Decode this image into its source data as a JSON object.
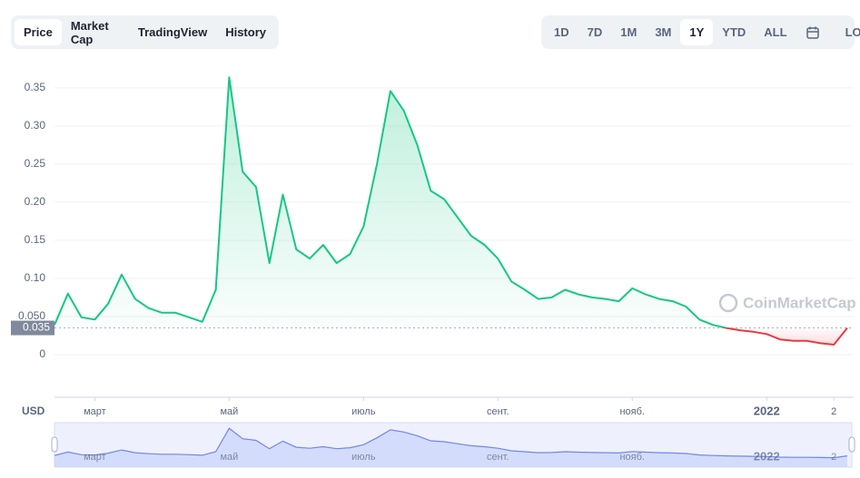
{
  "tabs": [
    "Price",
    "Market Cap",
    "TradingView",
    "History"
  ],
  "active_tab": 0,
  "ranges": [
    "1D",
    "7D",
    "1M",
    "3M",
    "1Y",
    "YTD",
    "ALL"
  ],
  "active_range": 4,
  "log_button": "LOG",
  "watermark": "CoinMarketCap",
  "currency": "USD",
  "chart_data": {
    "type": "line",
    "categories": [
      null,
      null,
      null,
      "март",
      null,
      null,
      null,
      null,
      null,
      null,
      null,
      null,
      null,
      "май",
      null,
      null,
      null,
      null,
      null,
      null,
      null,
      null,
      null,
      "июль",
      null,
      null,
      null,
      null,
      null,
      null,
      null,
      null,
      null,
      "сент.",
      null,
      null,
      null,
      null,
      null,
      null,
      null,
      null,
      null,
      "нояб.",
      null,
      null,
      null,
      null,
      null,
      null,
      null,
      null,
      null,
      "2022",
      null,
      null,
      null,
      null,
      "2",
      null
    ],
    "bold_categories": [
      "2022"
    ],
    "values": [
      0.039,
      0.08,
      0.049,
      0.046,
      0.067,
      0.105,
      0.073,
      0.061,
      0.055,
      0.055,
      0.049,
      0.043,
      0.085,
      0.364,
      0.24,
      0.22,
      0.12,
      0.21,
      0.138,
      0.126,
      0.144,
      0.12,
      0.132,
      0.168,
      0.25,
      0.346,
      0.32,
      0.275,
      0.215,
      0.204,
      0.18,
      0.156,
      0.144,
      0.126,
      0.096,
      0.085,
      0.073,
      0.075,
      0.085,
      0.079,
      0.075,
      0.073,
      0.07,
      0.087,
      0.079,
      0.073,
      0.07,
      0.063,
      0.046,
      0.039,
      0.035,
      0.032,
      0.03,
      0.027,
      0.02,
      0.018,
      0.018,
      0.015,
      0.013,
      0.035
    ],
    "color": "#16c784",
    "below_color": "#ea3943",
    "reference": {
      "value": 0.035,
      "label": "0.035"
    },
    "ylim": [
      -0.056,
      0.388
    ],
    "yticks": [
      0,
      {
        "value": 0.05,
        "label": "0.050"
      },
      {
        "value": 0.1,
        "label": "0.10"
      },
      0.15,
      {
        "value": 0.2,
        "label": "0.20"
      },
      0.25,
      {
        "value": 0.3,
        "label": "0.30"
      },
      0.35
    ],
    "grid": true
  }
}
